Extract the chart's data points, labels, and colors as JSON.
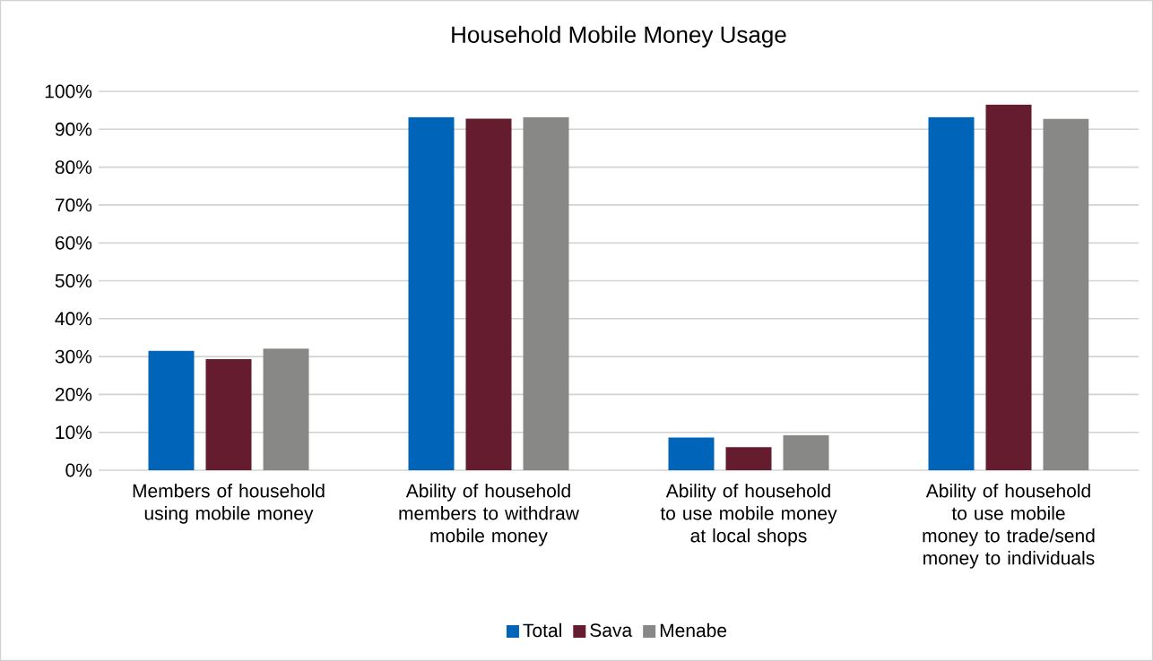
{
  "chart_data": {
    "type": "bar",
    "title": "Household Mobile Money Usage",
    "categories": [
      "Members of household using mobile money",
      "Ability of household members to withdraw mobile money",
      "Ability of household to use mobile money at local shops",
      "Ability of household to use mobile money to trade/send money to individuals"
    ],
    "series": [
      {
        "name": "Total",
        "color": "#0064b9",
        "values": [
          31.5,
          93.2,
          8.6,
          93.2
        ]
      },
      {
        "name": "Sava",
        "color": "#641c2e",
        "values": [
          29.3,
          92.8,
          6.1,
          96.5
        ]
      },
      {
        "name": "Menabe",
        "color": "#888886",
        "values": [
          32.1,
          93.2,
          9.2,
          92.7
        ]
      }
    ],
    "ylim": [
      0,
      100
    ],
    "yticks": [
      {
        "value": 0,
        "label": "0%"
      },
      {
        "value": 10,
        "label": "10%"
      },
      {
        "value": 20,
        "label": "20%"
      },
      {
        "value": 30,
        "label": "30%"
      },
      {
        "value": 40,
        "label": "40%"
      },
      {
        "value": 50,
        "label": "50%"
      },
      {
        "value": 60,
        "label": "60%"
      },
      {
        "value": 70,
        "label": "70%"
      },
      {
        "value": 80,
        "label": "80%"
      },
      {
        "value": 90,
        "label": "90%"
      },
      {
        "value": 100,
        "label": "100%"
      }
    ],
    "grid": "y",
    "legend": "bottom"
  }
}
